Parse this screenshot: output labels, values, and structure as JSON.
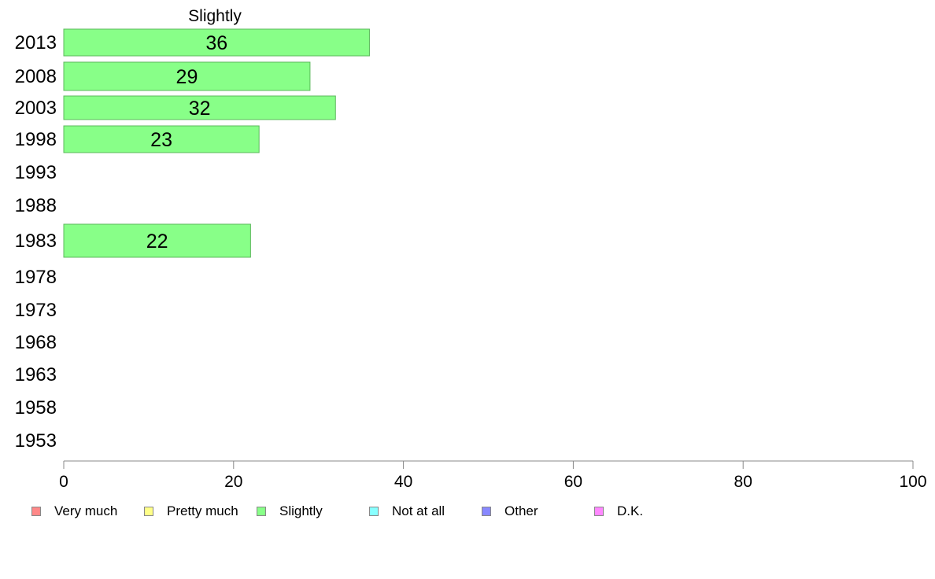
{
  "chart_data": {
    "type": "bar",
    "orientation": "horizontal",
    "title": "Slightly",
    "categories": [
      "2013",
      "2008",
      "2003",
      "1998",
      "1993",
      "1988",
      "1983",
      "1978",
      "1973",
      "1968",
      "1963",
      "1958",
      "1953"
    ],
    "values": [
      36,
      29,
      32,
      23,
      null,
      null,
      22,
      null,
      null,
      null,
      null,
      null,
      null
    ],
    "data_labels": [
      "36",
      "29",
      "32",
      "23",
      "",
      "",
      "22",
      "",
      "",
      "",
      "",
      "",
      ""
    ],
    "xlim": [
      0,
      100
    ],
    "xticks": [
      "0",
      "20",
      "40",
      "60",
      "80",
      "100"
    ],
    "bar_color": "#88ff88",
    "bar_border_color": "#5cb85c",
    "grid": false,
    "legend_position": "bottom-left",
    "legend": [
      {
        "label": "Very much",
        "color": "#ff8888"
      },
      {
        "label": "Pretty much",
        "color": "#ffff88"
      },
      {
        "label": "Slightly",
        "color": "#88ff88"
      },
      {
        "label": "Not at all",
        "color": "#88ffff"
      },
      {
        "label": "Other",
        "color": "#8888ff"
      },
      {
        "label": "D.K.",
        "color": "#ff88ff"
      }
    ]
  }
}
